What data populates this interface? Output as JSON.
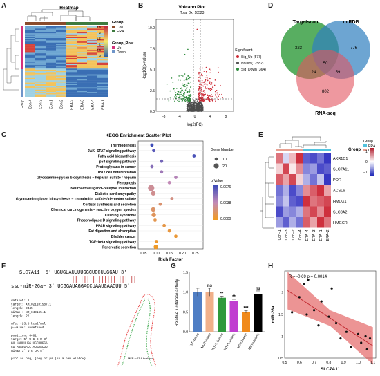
{
  "labels": {
    "A": "A",
    "B": "B",
    "C": "C",
    "D": "D",
    "E": "E",
    "F": "F",
    "G": "G",
    "H": "H"
  },
  "panelA": {
    "title": "Heatmap",
    "legend_group_title": "Group",
    "legend_group": [
      "Con",
      "ERA"
    ],
    "legend_row_title": "Group_Row",
    "legend_row": [
      "Up",
      "Down"
    ],
    "scale_ticks": [
      "2.5",
      "2",
      "1.5",
      "1",
      "0.5",
      "0"
    ],
    "columns": [
      "Group",
      "Con-4",
      "Con-3",
      "Con-1",
      "Con-2",
      "ERA-2",
      "ERA-3",
      "ERA-4",
      "ERA-1"
    ],
    "colors": {
      "con": "#8a4b2b",
      "era": "#3e7b3f",
      "up": "#d4317a",
      "down": "#6f95c9"
    }
  },
  "panelB": {
    "title": "Volcano Plot",
    "subtitle": "Total Dx: 18523",
    "xlabel": "log2(FC)",
    "ylabel": "-log10(p-value)",
    "xticks": [
      "-8",
      "-4",
      "0",
      "4",
      "8"
    ],
    "yticks": [
      "10.0",
      "7.5",
      "5.0",
      "2.5",
      "0.0"
    ],
    "legend_title": "Significant",
    "legend": [
      {
        "label": "Sig_Up (577)",
        "color": "#cc2a35"
      },
      {
        "label": "NoDiff (17582)",
        "color": "#555555"
      },
      {
        "label": "Sig_Down (364)",
        "color": "#2e8b3c"
      }
    ]
  },
  "panelC": {
    "title": "KEGG Enrichment Scatter Plot",
    "xlabel": "Rich Factor",
    "xticks": [
      "0.05",
      "0.10",
      "0.15",
      "0.20",
      "0.25"
    ],
    "pathways": [
      {
        "name": "Thermogenesis",
        "x": 0.083,
        "size": 10,
        "p": 0.0076
      },
      {
        "name": "JAK−STAT signaling pathway",
        "x": 0.09,
        "size": 10,
        "p": 0.0068
      },
      {
        "name": "Fatty acid biosynthesis",
        "x": 0.245,
        "size": 10,
        "p": 0.0072
      },
      {
        "name": "p53 signaling pathway",
        "x": 0.12,
        "size": 10,
        "p": 0.006
      },
      {
        "name": "Proteoglycans in cancer",
        "x": 0.083,
        "size": 10,
        "p": 0.0055
      },
      {
        "name": "Th17 cell differentiation",
        "x": 0.12,
        "size": 10,
        "p": 0.0048
      },
      {
        "name": "Glycosaminoglycan biosynthesis − heparan sulfate / heparin",
        "x": 0.175,
        "size": 10,
        "p": 0.0042
      },
      {
        "name": "Ferroptosis",
        "x": 0.15,
        "size": 10,
        "p": 0.0038
      },
      {
        "name": "Neuroactive ligand−receptor interaction",
        "x": 0.08,
        "size": 20,
        "p": 0.003
      },
      {
        "name": "Diabetic cardiomyopathy",
        "x": 0.088,
        "size": 12,
        "p": 0.0028
      },
      {
        "name": "Glycosaminoglycan biosynthesis − chondroitin sulfate / dermatan sulfate",
        "x": 0.16,
        "size": 10,
        "p": 0.0025
      },
      {
        "name": "Cortisol synthesis and secretion",
        "x": 0.115,
        "size": 10,
        "p": 0.002
      },
      {
        "name": "Chemical carcinogenesis − reactive oxygen species",
        "x": 0.088,
        "size": 12,
        "p": 0.0018
      },
      {
        "name": "Cushing syndrome",
        "x": 0.09,
        "size": 12,
        "p": 0.0015
      },
      {
        "name": "Phospholipase D signaling pathway",
        "x": 0.095,
        "size": 10,
        "p": 0.0012
      },
      {
        "name": "PPAR signaling pathway",
        "x": 0.13,
        "size": 10,
        "p": 0.001
      },
      {
        "name": "Fat digestion and absorption",
        "x": 0.15,
        "size": 10,
        "p": 0.0008
      },
      {
        "name": "Bladder cancer",
        "x": 0.175,
        "size": 10,
        "p": 0.0006
      },
      {
        "name": "TGF−beta signaling pathway",
        "x": 0.1,
        "size": 10,
        "p": 0.0004
      },
      {
        "name": "Pancreatic secretion",
        "x": 0.098,
        "size": 12,
        "p": 0.0002
      }
    ],
    "size_title": "Gene Number",
    "size_legend": [
      "10",
      "20"
    ],
    "p_title": "p Value",
    "p_ticks": [
      "0.0076",
      "0.0038",
      "0.0000"
    ]
  },
  "panelD": {
    "sets": [
      "Targetscan",
      "miRDB",
      "RNA-seq"
    ],
    "counts": {
      "ts_only": "323",
      "mirdb_only": "776",
      "rna_only": "802",
      "ts_rna": "24",
      "center": "50",
      "mirdb_rna": "59"
    },
    "colors": {
      "ts": "#2e9a3a",
      "mirdb": "#2f7fbf",
      "rna": "#e2535f"
    }
  },
  "panelE": {
    "legend_title_group": "Group",
    "group_labels": [
      "ERA",
      "Con"
    ],
    "genes": [
      "AKR1C1",
      "SLC7A11",
      "POR",
      "ACSL6",
      "HMOX1",
      "SLC3A2",
      "HMGCR"
    ],
    "columns": [
      "Con−1",
      "Con−3",
      "Con−2",
      "Con−4",
      "ERA−4",
      "ERA−3",
      "ERA−1",
      "ERA−2"
    ],
    "scale_ticks": [
      "1",
      "0",
      "−1"
    ]
  },
  "panelF": {
    "seq_top": "SLC7A11− 5' UGUGUAUUUUGGCUGCUUGGAU 3'",
    "seq_bottom": "ssc-miR-26a− 3' UCGGAUAGGACCUAAUGAACUU 5'",
    "info": [
      "dataset: 1",
      "target: XM_021101587.1",
      "length: 9345",
      "miRNA : NR_049165.1",
      "length: 22",
      "",
      "mfe: -23.8 kcal/mol",
      "p-value: undefined",
      "",
      "position: 6481",
      "target 5' U  G       C        U 3'",
      "          GU UAUUUUGG  UGCUUGGA",
      "          CG AUAGGACC  AUGAACUU",
      "miRNA  3' U  G       UA       5'",
      "",
      "plot as png, jpeg or ps (in a new window)"
    ],
    "mfe_note": "MFE: −23.8 kcal/mol"
  },
  "panelG": {
    "ylabel": "Relative luciferase activity",
    "yticks": [
      "1.5",
      "1.0",
      "0.5",
      "0.0"
    ],
    "chart_data": {
      "type": "bar",
      "categories": [
        "WT+mimic",
        "MUT+mimic",
        "WT+1.5mimic",
        "WT+1.5mimic",
        "WT+2mimic",
        "MUT+2mimic"
      ],
      "values": [
        1.0,
        1.0,
        0.86,
        0.78,
        0.5,
        0.95
      ],
      "errors": [
        0.1,
        0.1,
        0.04,
        0.04,
        0.03,
        0.08
      ],
      "sig": [
        "",
        "ns",
        "**",
        "**",
        "***",
        "ns"
      ],
      "colors": [
        "#4f7ec4",
        "#f0b08a",
        "#2f9a3c",
        "#c03ed0",
        "#f08a1c",
        "#000000"
      ],
      "ylim": [
        0,
        1.5
      ]
    }
  },
  "panelH": {
    "annotation": "R = -0.69   p = 0.0014",
    "xlabel": "SLC7A11",
    "ylabel": "miR-26a",
    "xticks": [
      "0.5",
      "0.6",
      "0.7",
      "0.8",
      "0.9",
      "1.0",
      "1.1"
    ],
    "yticks": [
      "2",
      "1.5",
      "1",
      "0.5"
    ],
    "chart_data": {
      "type": "scatter",
      "x": [
        0.55,
        0.6,
        0.63,
        0.65,
        0.66,
        0.7,
        0.73,
        0.75,
        0.8,
        0.82,
        0.85,
        0.88,
        0.92,
        0.95,
        1.0,
        1.02,
        1.05,
        1.06,
        1.08
      ],
      "y": [
        1.55,
        1.9,
        2.2,
        1.5,
        2.3,
        1.6,
        1.25,
        1.8,
        1.45,
        2.1,
        1.3,
        0.95,
        1.1,
        0.75,
        1.05,
        0.85,
        1.0,
        0.7,
        0.95
      ],
      "xlim": [
        0.5,
        1.12
      ],
      "ylim": [
        0.5,
        2.5
      ],
      "fit": {
        "x": [
          0.52,
          1.1
        ],
        "y": [
          2.05,
          0.78
        ]
      },
      "band_color": "#e25a5a"
    }
  }
}
